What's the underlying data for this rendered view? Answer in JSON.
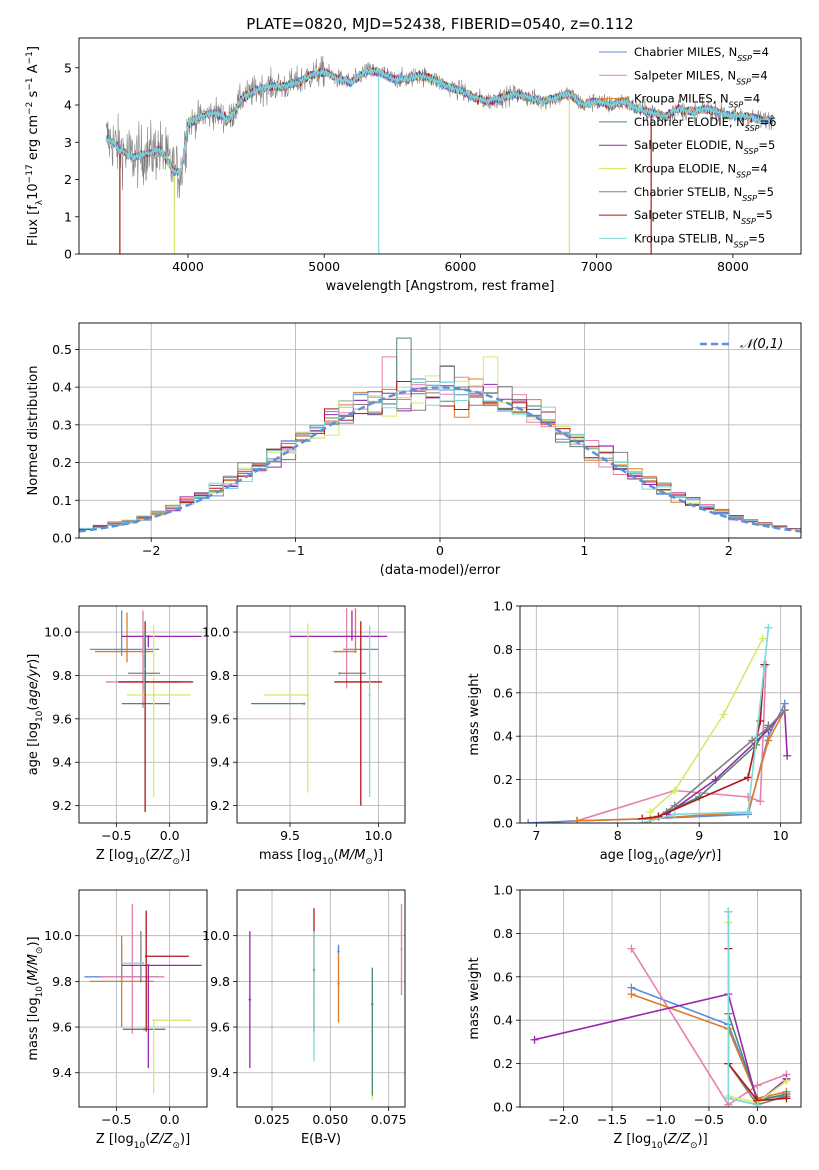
{
  "figure_title": "PLATE=0820, MJD=52438, FIBERID=0540, z=0.112",
  "colors": {
    "chabrier_miles": "#5b8fd9",
    "salpeter_miles": "#e580b0",
    "kroupa_miles": "#e07b2a",
    "chabrier_elodie": "#4d8a6e",
    "salpeter_elodie": "#9b27b0",
    "kroupa_elodie": "#d4ea6b",
    "chabrier_stelib": "#808080",
    "salpeter_stelib": "#b01818",
    "kroupa_stelib": "#7fd8d8",
    "normal": "#5b8fd9"
  },
  "chart_data": [
    {
      "id": "spectrum",
      "type": "line",
      "xlabel": "wavelength [Angstrom, rest frame]",
      "ylabel": "Flux [f_λ10^-17 erg cm^-2 s^-1 A^-1]",
      "xlim": [
        3200,
        8500
      ],
      "ylim": [
        0,
        5.8
      ],
      "xticks": [
        4000,
        5000,
        6000,
        7000,
        8000
      ],
      "yticks": [
        0,
        1,
        2,
        3,
        4,
        5
      ],
      "grid": false,
      "legend_position": "upper-right",
      "legend": [
        {
          "key": "chabrier_miles",
          "label": "Chabrier MILES, N_SSP=4"
        },
        {
          "key": "salpeter_miles",
          "label": "Salpeter MILES, N_SSP=4"
        },
        {
          "key": "kroupa_miles",
          "label": "Kroupa MILES, N_SSP=4"
        },
        {
          "key": "chabrier_elodie",
          "label": "Chabrier ELODIE, N_SSP=6"
        },
        {
          "key": "salpeter_elodie",
          "label": "Salpeter ELODIE, N_SSP=5"
        },
        {
          "key": "kroupa_elodie",
          "label": "Kroupa ELODIE, N_SSP=4"
        },
        {
          "key": "chabrier_stelib",
          "label": "Chabrier STELIB, N_SSP=5"
        },
        {
          "key": "salpeter_stelib",
          "label": "Salpeter STELIB, N_SSP=5"
        },
        {
          "key": "kroupa_stelib",
          "label": "Kroupa STELIB, N_SSP=5"
        }
      ],
      "continuum": {
        "x": [
          3400,
          3450,
          3500,
          3600,
          3700,
          3800,
          3850,
          3900,
          3950,
          4000,
          4100,
          4200,
          4300,
          4400,
          4500,
          4600,
          4700,
          4800,
          4900,
          5000,
          5100,
          5200,
          5300,
          5400,
          5500,
          5600,
          5700,
          5800,
          5900,
          6000,
          6100,
          6200,
          6300,
          6400,
          6500,
          6600,
          6700,
          6800,
          6900,
          7000,
          7100,
          7200,
          7300,
          7400,
          7500,
          7600,
          7700,
          7800,
          7900,
          8000,
          8100,
          8200,
          8300
        ],
        "y": [
          3.1,
          3.0,
          2.8,
          2.6,
          2.7,
          2.8,
          2.5,
          2.2,
          2.2,
          3.5,
          3.7,
          3.8,
          3.6,
          4.2,
          4.4,
          4.5,
          4.5,
          4.6,
          4.8,
          4.9,
          4.7,
          4.6,
          4.9,
          4.9,
          4.7,
          4.7,
          4.8,
          4.7,
          4.5,
          4.4,
          4.2,
          4.1,
          4.2,
          4.3,
          4.2,
          4.1,
          4.2,
          4.3,
          4.0,
          4.1,
          4.0,
          4.1,
          3.9,
          3.8,
          3.7,
          3.9,
          3.8,
          3.9,
          3.8,
          3.7,
          3.7,
          3.6,
          3.6
        ]
      },
      "dropouts": [
        3500,
        3900,
        5400,
        6800,
        7400
      ]
    },
    {
      "id": "residuals",
      "type": "histogram",
      "xlabel": "(data-model)/error",
      "ylabel": "Normed distribution",
      "xlim": [
        -2.5,
        2.5
      ],
      "ylim": [
        0,
        0.57
      ],
      "xticks": [
        -2,
        -1,
        0,
        1,
        2
      ],
      "yticks": [
        0.0,
        0.1,
        0.2,
        0.3,
        0.4,
        0.5
      ],
      "grid": true,
      "legend_position": "upper-right",
      "legend": [
        {
          "key": "normal",
          "label": "𝒩(0,1)"
        }
      ],
      "bin_width": 0.1,
      "bin_start": -2.5,
      "series_keys": [
        "chabrier_miles",
        "salpeter_miles",
        "kroupa_miles",
        "chabrier_elodie",
        "salpeter_elodie",
        "kroupa_elodie",
        "chabrier_stelib",
        "salpeter_stelib",
        "kroupa_stelib"
      ]
    },
    {
      "id": "z_vs_age",
      "type": "scatter-errorbar",
      "xlabel": "Z [log10(Z/Z⊙)]",
      "ylabel": "age  [log10(age/yr)]",
      "xlim": [
        -0.85,
        0.35
      ],
      "ylim": [
        9.12,
        10.12
      ],
      "xticks": [
        -0.5,
        0.0
      ],
      "yticks": [
        9.2,
        9.4,
        9.6,
        9.8,
        10.0
      ],
      "grid": true,
      "points": [
        {
          "key": "chabrier_miles",
          "x": -0.45,
          "xerr": [
            0.3,
            0.35
          ],
          "y": 9.92,
          "yerr": [
            0.03,
            0.18
          ]
        },
        {
          "key": "salpeter_miles",
          "x": -0.25,
          "xerr": [
            0.35,
            0.35
          ],
          "y": 9.77,
          "yerr": [
            0.12,
            0.33
          ]
        },
        {
          "key": "kroupa_miles",
          "x": -0.4,
          "xerr": [
            0.3,
            0.25
          ],
          "y": 9.91,
          "yerr": [
            0.05,
            0.18
          ]
        },
        {
          "key": "chabrier_elodie",
          "x": -0.25,
          "xerr": [
            0.2,
            0.25
          ],
          "y": 9.67,
          "yerr": [
            0.0,
            0.0
          ]
        },
        {
          "key": "salpeter_elodie",
          "x": -0.2,
          "xerr": [
            0.25,
            0.5
          ],
          "y": 9.98,
          "yerr": [
            0.05,
            0.0
          ]
        },
        {
          "key": "kroupa_elodie",
          "x": -0.15,
          "xerr": [
            0.25,
            0.35
          ],
          "y": 9.71,
          "yerr": [
            0.47,
            0.32
          ]
        },
        {
          "key": "chabrier_stelib",
          "x": -0.24,
          "xerr": [
            0.15,
            0.15
          ],
          "y": 9.81,
          "yerr": [
            0.0,
            0.0
          ]
        },
        {
          "key": "salpeter_stelib",
          "x": -0.23,
          "xerr": [
            0.25,
            0.45
          ],
          "y": 9.77,
          "yerr": [
            0.6,
            0.28
          ]
        },
        {
          "key": "kroupa_stelib",
          "x": -0.24,
          "xerr": [
            0.0,
            0.0
          ],
          "y": 9.83,
          "yerr": [
            0.1,
            0.17
          ]
        }
      ]
    },
    {
      "id": "mass_vs_age",
      "type": "scatter-errorbar",
      "xlabel": "mass [log10(M/M⊙)]",
      "ylabel": "",
      "xlim": [
        9.2,
        10.15
      ],
      "ylim": [
        9.12,
        10.12
      ],
      "xticks": [
        9.5,
        10.0
      ],
      "yticks": [
        9.2,
        9.4,
        9.6,
        9.8,
        10.0
      ],
      "grid": true,
      "points": [
        {
          "key": "chabrier_miles",
          "x": 9.9,
          "xerr": [
            0.1,
            0.1
          ],
          "y": 9.92,
          "yerr": [
            0.0,
            0.0
          ]
        },
        {
          "key": "salpeter_miles",
          "x": 9.82,
          "xerr": [
            0.08,
            0.0
          ],
          "y": 9.91,
          "yerr": [
            0.17,
            0.2
          ]
        },
        {
          "key": "kroupa_miles",
          "x": 9.87,
          "xerr": [
            0.12,
            0.0
          ],
          "y": 9.91,
          "yerr": [
            0.0,
            0.2
          ]
        },
        {
          "key": "chabrier_elodie",
          "x": 9.58,
          "xerr": [
            0.3,
            0.0
          ],
          "y": 9.67,
          "yerr": [
            0.0,
            0.0
          ]
        },
        {
          "key": "salpeter_elodie",
          "x": 9.85,
          "xerr": [
            0.35,
            0.2
          ],
          "y": 9.98,
          "yerr": [
            0.02,
            0.12
          ]
        },
        {
          "key": "kroupa_elodie",
          "x": 9.6,
          "xerr": [
            0.25,
            0.0
          ],
          "y": 9.71,
          "yerr": [
            0.45,
            0.33
          ]
        },
        {
          "key": "chabrier_stelib",
          "x": 9.78,
          "xerr": [
            0.0,
            0.15
          ],
          "y": 9.81,
          "yerr": [
            0.0,
            0.0
          ]
        },
        {
          "key": "salpeter_stelib",
          "x": 9.9,
          "xerr": [
            0.15,
            0.12
          ],
          "y": 9.77,
          "yerr": [
            0.57,
            0.28
          ]
        },
        {
          "key": "kroupa_stelib",
          "x": 9.95,
          "xerr": [
            0.0,
            0.0
          ],
          "y": 9.71,
          "yerr": [
            0.47,
            0.32
          ]
        }
      ]
    },
    {
      "id": "age_vs_weight",
      "type": "line",
      "xlabel": "age  [log10(age/yr)]",
      "ylabel": "mass weight",
      "xlim": [
        6.8,
        10.25
      ],
      "ylim": [
        0,
        1
      ],
      "xticks": [
        7,
        8,
        9,
        10
      ],
      "yticks": [
        0.0,
        0.2,
        0.4,
        0.6,
        0.8,
        1.0
      ],
      "grid": true,
      "series": [
        {
          "key": "chabrier_miles",
          "x": [
            6.9,
            7.5,
            8.4,
            9.6,
            9.85,
            10.05
          ],
          "y": [
            0.0,
            0.01,
            0.02,
            0.04,
            0.4,
            0.55
          ]
        },
        {
          "key": "salpeter_miles",
          "x": [
            7.5,
            8.7,
            9.6,
            9.75,
            9.82
          ],
          "y": [
            0.01,
            0.15,
            0.12,
            0.1,
            0.73
          ]
        },
        {
          "key": "kroupa_miles",
          "x": [
            7.5,
            8.4,
            9.6,
            9.85,
            10.05
          ],
          "y": [
            0.01,
            0.02,
            0.05,
            0.38,
            0.52
          ]
        },
        {
          "key": "chabrier_elodie",
          "x": [
            8.6,
            9.0,
            9.7,
            9.85
          ],
          "y": [
            0.05,
            0.12,
            0.36,
            0.45
          ]
        },
        {
          "key": "salpeter_elodie",
          "x": [
            8.6,
            9.2,
            9.85,
            10.05,
            10.08
          ],
          "y": [
            0.04,
            0.2,
            0.43,
            0.52,
            0.31
          ]
        },
        {
          "key": "kroupa_elodie",
          "x": [
            8.4,
            8.7,
            9.3,
            9.78
          ],
          "y": [
            0.05,
            0.15,
            0.5,
            0.85
          ]
        },
        {
          "key": "chabrier_stelib",
          "x": [
            8.5,
            8.7,
            9.65,
            9.85,
            10.05
          ],
          "y": [
            0.03,
            0.08,
            0.38,
            0.44,
            0.52
          ]
        },
        {
          "key": "salpeter_stelib",
          "x": [
            8.3,
            8.5,
            9.6,
            9.75,
            9.8
          ],
          "y": [
            0.02,
            0.03,
            0.21,
            0.47,
            0.73
          ]
        },
        {
          "key": "kroupa_stelib",
          "x": [
            8.3,
            8.7,
            9.6,
            9.8,
            9.85
          ],
          "y": [
            0.0,
            0.04,
            0.05,
            0.72,
            0.9
          ]
        }
      ]
    },
    {
      "id": "z_vs_mass",
      "type": "scatter-errorbar",
      "xlabel": "Z [log10(Z/Z⊙)]",
      "ylabel": "mass [log10(M/M⊙)]",
      "xlim": [
        -0.85,
        0.35
      ],
      "ylim": [
        9.25,
        10.2
      ],
      "xticks": [
        -0.5,
        0.0
      ],
      "yticks": [
        9.4,
        9.6,
        9.8,
        10.0
      ],
      "grid": true,
      "points": [
        {
          "key": "chabrier_miles",
          "x": -0.45,
          "xerr": [
            0.35,
            0.35
          ],
          "y": 9.82,
          "yerr": [
            0.0,
            0.15
          ]
        },
        {
          "key": "salpeter_miles",
          "x": -0.35,
          "xerr": [
            0.3,
            0.3
          ],
          "y": 9.82,
          "yerr": [
            0.25,
            0.32
          ]
        },
        {
          "key": "kroupa_miles",
          "x": -0.45,
          "xerr": [
            0.3,
            0.3
          ],
          "y": 9.8,
          "yerr": [
            0.2,
            0.2
          ]
        },
        {
          "key": "chabrier_elodie",
          "x": -0.24,
          "xerr": [
            0.2,
            0.2
          ],
          "y": 9.59,
          "yerr": [
            0.0,
            0.0
          ]
        },
        {
          "key": "salpeter_elodie",
          "x": -0.2,
          "xerr": [
            0.25,
            0.5
          ],
          "y": 9.87,
          "yerr": [
            0.45,
            0.0
          ]
        },
        {
          "key": "kroupa_elodie",
          "x": -0.15,
          "xerr": [
            0.0,
            0.35
          ],
          "y": 9.63,
          "yerr": [
            0.32,
            0.0
          ]
        },
        {
          "key": "chabrier_stelib",
          "x": -0.27,
          "xerr": [
            0.0,
            0.0
          ],
          "y": 9.8,
          "yerr": [
            0.0,
            0.22
          ]
        },
        {
          "key": "salpeter_stelib",
          "x": -0.22,
          "xerr": [
            0.0,
            0.4
          ],
          "y": 9.91,
          "yerr": [
            0.33,
            0.2
          ]
        },
        {
          "key": "kroupa_stelib",
          "x": -0.25,
          "xerr": [
            0.2,
            0.0
          ],
          "y": 9.88,
          "yerr": [
            0.0,
            0.0
          ]
        }
      ]
    },
    {
      "id": "ebv_vs_mass",
      "type": "errorbar",
      "xlabel": "E(B-V)",
      "ylabel": "",
      "xlim": [
        0.01,
        0.082
      ],
      "ylim": [
        9.25,
        10.2
      ],
      "xticks": [
        0.025,
        0.05,
        0.075
      ],
      "yticks": [
        9.4,
        9.6,
        9.8,
        10.0
      ],
      "grid": true,
      "points": [
        {
          "key": "salpeter_elodie",
          "x": 0.0155,
          "y": 9.72,
          "yerr": [
            0.3,
            0.3
          ]
        },
        {
          "key": "salpeter_stelib",
          "x": 0.043,
          "y": 9.85,
          "yerr": [
            0.27,
            0.27
          ]
        },
        {
          "key": "kroupa_stelib",
          "x": 0.043,
          "y": 9.75,
          "yerr": [
            0.3,
            0.27
          ]
        },
        {
          "key": "kroupa_miles",
          "x": 0.0535,
          "y": 9.79,
          "yerr": [
            0.17,
            0.17
          ]
        },
        {
          "key": "chabrier_miles",
          "x": 0.0535,
          "y": 9.93,
          "yerr": [
            0.0,
            0.03
          ]
        },
        {
          "key": "kroupa_elodie",
          "x": 0.068,
          "y": 9.58,
          "yerr": [
            0.3,
            0.27
          ]
        },
        {
          "key": "chabrier_elodie",
          "x": 0.068,
          "y": 9.7,
          "yerr": [
            0.4,
            0.16
          ]
        },
        {
          "key": "salpeter_miles",
          "x": 0.0805,
          "y": 9.94,
          "yerr": [
            0.2,
            0.2
          ]
        }
      ]
    },
    {
      "id": "z_vs_weight",
      "type": "line",
      "xlabel": "Z [log10(Z/Z⊙)]",
      "ylabel": "mass weight",
      "xlim": [
        -2.45,
        0.45
      ],
      "ylim": [
        0,
        1
      ],
      "xticks": [
        -2.0,
        -1.5,
        -1.0,
        -0.5,
        0.0
      ],
      "yticks": [
        0.0,
        0.2,
        0.4,
        0.6,
        0.8,
        1.0
      ],
      "grid": true,
      "series": [
        {
          "key": "chabrier_miles",
          "x": [
            -1.3,
            -0.3,
            0.0,
            0.3
          ],
          "y": [
            0.55,
            0.38,
            0.04,
            0.05
          ]
        },
        {
          "key": "salpeter_miles",
          "x": [
            -1.3,
            -0.3,
            0.0,
            0.3
          ],
          "y": [
            0.73,
            0.01,
            0.1,
            0.15
          ]
        },
        {
          "key": "kroupa_miles",
          "x": [
            -1.3,
            -0.3,
            0.0,
            0.3
          ],
          "y": [
            0.52,
            0.36,
            0.04,
            0.07
          ]
        },
        {
          "key": "chabrier_elodie",
          "x": [
            -0.3,
            0.0,
            0.3
          ],
          "y": [
            0.43,
            0.03,
            0.06
          ]
        },
        {
          "key": "salpeter_elodie",
          "x": [
            -2.3,
            -0.3,
            0.0,
            0.3
          ],
          "y": [
            0.31,
            0.52,
            0.02,
            0.13
          ]
        },
        {
          "key": "kroupa_elodie",
          "x": [
            -0.3,
            -0.3,
            0.0,
            0.3
          ],
          "y": [
            0.85,
            0.05,
            0.02,
            0.12
          ]
        },
        {
          "key": "chabrier_stelib",
          "x": [
            -0.3,
            -0.3,
            0.0,
            0.3
          ],
          "y": [
            0.9,
            0.2,
            0.01,
            0.05
          ]
        },
        {
          "key": "salpeter_stelib",
          "x": [
            -0.3,
            -0.3,
            0.0,
            0.3
          ],
          "y": [
            0.73,
            0.2,
            0.03,
            0.04
          ]
        },
        {
          "key": "kroupa_stelib",
          "x": [
            -0.3,
            -0.3,
            0.0
          ],
          "y": [
            0.9,
            0.04,
            0.01
          ]
        }
      ]
    }
  ]
}
